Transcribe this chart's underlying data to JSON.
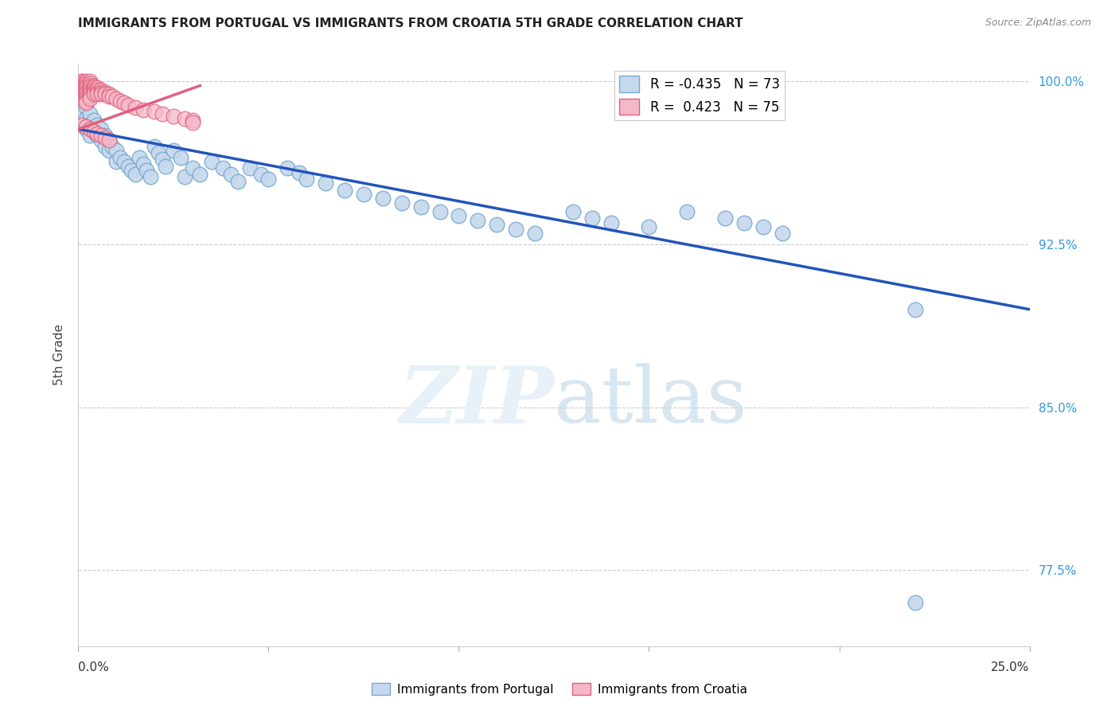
{
  "title": "IMMIGRANTS FROM PORTUGAL VS IMMIGRANTS FROM CROATIA 5TH GRADE CORRELATION CHART",
  "source": "Source: ZipAtlas.com",
  "ylabel": "5th Grade",
  "xlim": [
    0.0,
    0.25
  ],
  "ylim": [
    0.74,
    1.008
  ],
  "y_ticks": [
    1.0,
    0.925,
    0.85,
    0.775
  ],
  "y_labels": [
    "100.0%",
    "92.5%",
    "85.0%",
    "77.5%"
  ],
  "blue_R": -0.435,
  "blue_N": 73,
  "pink_R": 0.423,
  "pink_N": 75,
  "blue_color": "#c5d8ed",
  "blue_edge": "#7aaad0",
  "pink_color": "#f5b8c8",
  "pink_edge": "#e0607a",
  "line_blue": "#2255bb",
  "line_pink": "#e06080",
  "blue_line_x0": 0.0,
  "blue_line_x1": 0.25,
  "blue_line_y0": 0.978,
  "blue_line_y1": 0.895,
  "pink_line_x0": 0.0,
  "pink_line_x1": 0.032,
  "pink_line_y0": 0.978,
  "pink_line_y1": 0.998,
  "blue_scatter_x": [
    0.001,
    0.001,
    0.001,
    0.002,
    0.002,
    0.002,
    0.003,
    0.003,
    0.003,
    0.004,
    0.004,
    0.005,
    0.005,
    0.006,
    0.006,
    0.007,
    0.007,
    0.008,
    0.008,
    0.009,
    0.01,
    0.01,
    0.011,
    0.012,
    0.013,
    0.014,
    0.015,
    0.016,
    0.017,
    0.018,
    0.019,
    0.02,
    0.021,
    0.022,
    0.023,
    0.025,
    0.027,
    0.028,
    0.03,
    0.032,
    0.035,
    0.038,
    0.04,
    0.042,
    0.045,
    0.048,
    0.05,
    0.055,
    0.058,
    0.06,
    0.065,
    0.07,
    0.075,
    0.08,
    0.085,
    0.09,
    0.095,
    0.1,
    0.105,
    0.11,
    0.115,
    0.12,
    0.13,
    0.135,
    0.14,
    0.15,
    0.16,
    0.17,
    0.175,
    0.18,
    0.185,
    0.22,
    0.22
  ],
  "blue_scatter_y": [
    0.99,
    0.985,
    0.98,
    0.988,
    0.983,
    0.978,
    0.985,
    0.98,
    0.975,
    0.982,
    0.977,
    0.98,
    0.975,
    0.978,
    0.973,
    0.975,
    0.97,
    0.973,
    0.968,
    0.97,
    0.968,
    0.963,
    0.965,
    0.963,
    0.961,
    0.959,
    0.957,
    0.965,
    0.962,
    0.959,
    0.956,
    0.97,
    0.967,
    0.964,
    0.961,
    0.968,
    0.965,
    0.956,
    0.96,
    0.957,
    0.963,
    0.96,
    0.957,
    0.954,
    0.96,
    0.957,
    0.955,
    0.96,
    0.958,
    0.955,
    0.953,
    0.95,
    0.948,
    0.946,
    0.944,
    0.942,
    0.94,
    0.938,
    0.936,
    0.934,
    0.932,
    0.93,
    0.94,
    0.937,
    0.935,
    0.933,
    0.94,
    0.937,
    0.935,
    0.933,
    0.93,
    0.895,
    0.76
  ],
  "pink_scatter_x": [
    0.001,
    0.001,
    0.001,
    0.001,
    0.001,
    0.001,
    0.001,
    0.001,
    0.001,
    0.001,
    0.001,
    0.001,
    0.001,
    0.001,
    0.001,
    0.001,
    0.001,
    0.001,
    0.002,
    0.002,
    0.002,
    0.002,
    0.002,
    0.002,
    0.002,
    0.002,
    0.002,
    0.002,
    0.002,
    0.003,
    0.003,
    0.003,
    0.003,
    0.003,
    0.003,
    0.003,
    0.003,
    0.003,
    0.004,
    0.004,
    0.004,
    0.004,
    0.004,
    0.005,
    0.005,
    0.005,
    0.005,
    0.006,
    0.006,
    0.006,
    0.007,
    0.007,
    0.008,
    0.008,
    0.009,
    0.01,
    0.011,
    0.012,
    0.013,
    0.015,
    0.017,
    0.02,
    0.022,
    0.025,
    0.028,
    0.03,
    0.03,
    0.001,
    0.002,
    0.003,
    0.004,
    0.005,
    0.006,
    0.007,
    0.008
  ],
  "pink_scatter_y": [
    1.0,
    1.0,
    0.999,
    0.999,
    0.998,
    0.998,
    0.997,
    0.997,
    0.996,
    0.996,
    0.995,
    0.995,
    0.994,
    0.994,
    0.993,
    0.993,
    0.992,
    0.992,
    1.0,
    0.999,
    0.998,
    0.997,
    0.996,
    0.995,
    0.994,
    0.993,
    0.992,
    0.991,
    0.99,
    1.0,
    0.999,
    0.998,
    0.997,
    0.996,
    0.995,
    0.994,
    0.993,
    0.992,
    0.998,
    0.997,
    0.996,
    0.995,
    0.994,
    0.997,
    0.996,
    0.995,
    0.994,
    0.996,
    0.995,
    0.994,
    0.995,
    0.994,
    0.994,
    0.993,
    0.993,
    0.992,
    0.991,
    0.99,
    0.989,
    0.988,
    0.987,
    0.986,
    0.985,
    0.984,
    0.983,
    0.982,
    0.981,
    0.98,
    0.979,
    0.978,
    0.977,
    0.976,
    0.975,
    0.974,
    0.973
  ]
}
